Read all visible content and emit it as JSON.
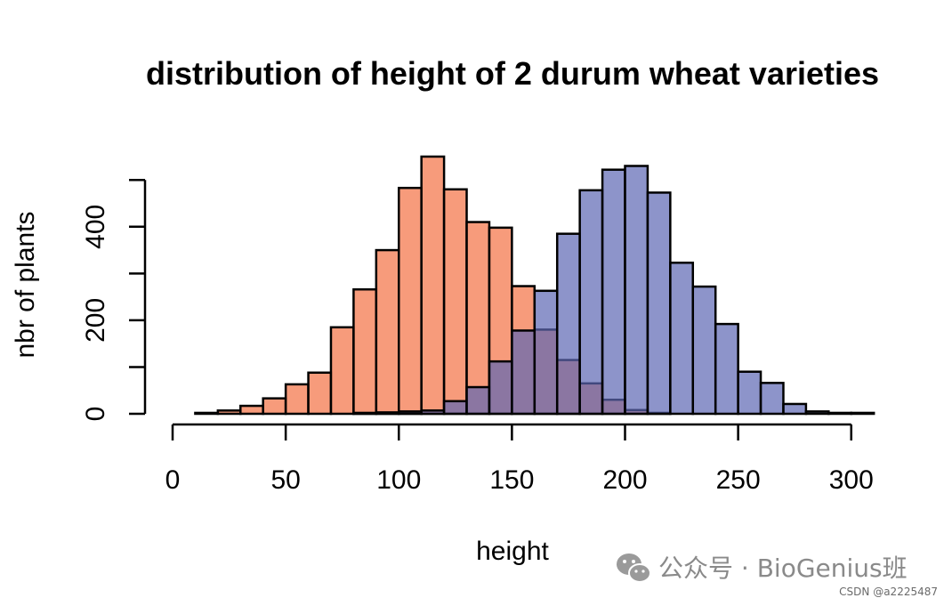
{
  "chart_data": {
    "type": "bar",
    "subtype": "overlaid-histogram",
    "title": "distribution of height of 2 durum wheat varieties",
    "xlabel": "height",
    "ylabel": "nbr of plants",
    "xlim": [
      0,
      310
    ],
    "ylim": [
      0,
      500
    ],
    "x_ticks": [
      0,
      50,
      100,
      150,
      200,
      250,
      300
    ],
    "y_ticks": [
      0,
      100,
      200,
      300,
      400,
      500
    ],
    "y_tick_labels": [
      "0",
      "",
      "200",
      "",
      "400",
      ""
    ],
    "bin_width": 10,
    "bin_starts": [
      10,
      20,
      30,
      40,
      50,
      60,
      70,
      80,
      90,
      100,
      110,
      120,
      130,
      140,
      150,
      160,
      170,
      180,
      190,
      200,
      210,
      220,
      230,
      240,
      250,
      260,
      270,
      280,
      290,
      300
    ],
    "series": [
      {
        "color": "#f4794f",
        "opacity": 0.75,
        "values": [
          2,
          7,
          17,
          33,
          63,
          88,
          185,
          266,
          350,
          483,
          550,
          480,
          410,
          398,
          273,
          180,
          115,
          65,
          30,
          8,
          2,
          0,
          0,
          0,
          0,
          0,
          0,
          0,
          0,
          0
        ]
      },
      {
        "color": "#5c67b4",
        "opacity": 0.7,
        "values": [
          0,
          0,
          0,
          0,
          0,
          0,
          0,
          2,
          3,
          5,
          7,
          27,
          57,
          112,
          178,
          263,
          385,
          478,
          522,
          530,
          473,
          323,
          272,
          192,
          90,
          66,
          21,
          5,
          2,
          2
        ]
      }
    ]
  },
  "watermark": {
    "wechat_text": "公众号 · BioGenius班",
    "csdn_text": "CSDN @a2225487",
    "icon": "wechat-icon"
  }
}
